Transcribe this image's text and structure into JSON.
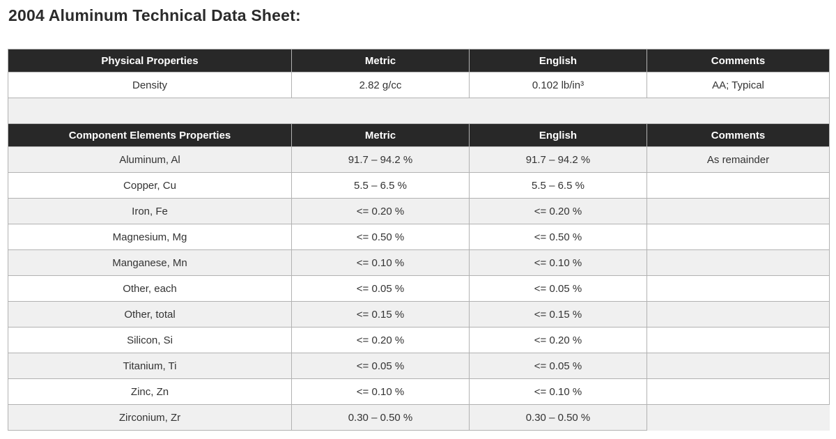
{
  "page_title": "2004 Aluminum Technical Data Sheet:",
  "physical_table": {
    "headers": [
      "Physical Properties",
      "Metric",
      "English",
      "Comments"
    ],
    "rows": [
      [
        "Density",
        "2.82 g/cc",
        "0.102 lb/in³",
        "AA; Typical"
      ]
    ]
  },
  "elements_table": {
    "headers": [
      "Component Elements Properties",
      "Metric",
      "English",
      "Comments"
    ],
    "rows": [
      [
        "Aluminum, Al",
        "91.7 – 94.2 %",
        "91.7 – 94.2 %",
        "As remainder"
      ],
      [
        "Copper, Cu",
        "5.5 – 6.5 %",
        "5.5 – 6.5 %",
        ""
      ],
      [
        "Iron, Fe",
        "<= 0.20 %",
        "<= 0.20 %",
        ""
      ],
      [
        "Magnesium, Mg",
        "<= 0.50 %",
        "<= 0.50 %",
        ""
      ],
      [
        "Manganese, Mn",
        "<= 0.10 %",
        "<= 0.10 %",
        ""
      ],
      [
        "Other, each",
        "<= 0.05 %",
        "<= 0.05 %",
        ""
      ],
      [
        "Other, total",
        "<= 0.15 %",
        "<= 0.15 %",
        ""
      ],
      [
        "Silicon, Si",
        "<= 0.20 %",
        "<= 0.20 %",
        ""
      ],
      [
        "Titanium, Ti",
        "<= 0.05 %",
        "<= 0.05 %",
        ""
      ],
      [
        "Zinc, Zn",
        "<= 0.10 %",
        "<= 0.10 %",
        ""
      ],
      [
        "Zirconium, Zr",
        "0.30 – 0.50 %",
        "0.30 – 0.50 %",
        null
      ]
    ]
  },
  "colors": {
    "header_bg": "#282828",
    "header_text": "#ffffff",
    "alt_row_bg": "#f0f0f0",
    "border": "#b2b2b2",
    "body_text": "#333333"
  }
}
